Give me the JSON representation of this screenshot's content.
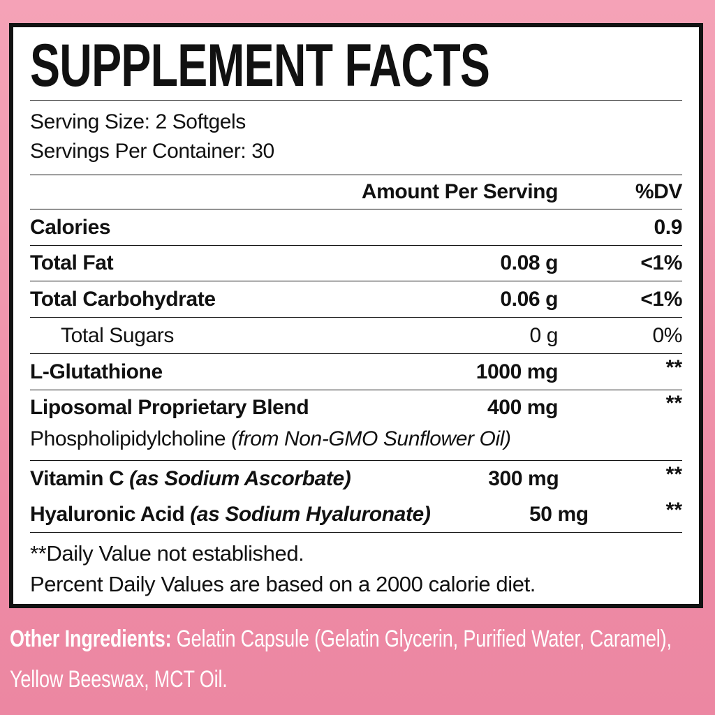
{
  "colors": {
    "background_pink_top": "#f5a2b7",
    "background_pink_bottom": "#ec87a2",
    "panel_background": "#ffffff",
    "ink": "#121212",
    "footer_text": "#ffffff"
  },
  "panel": {
    "title": "SUPPLEMENT FACTS",
    "serving_size": "Serving Size: 2 Softgels",
    "servings_per_container": "Servings Per Container: 30",
    "columns": {
      "amount": "Amount Per Serving",
      "dv": "%DV"
    },
    "rows": [
      {
        "label": "Calories",
        "amount": "",
        "dv": "0.9"
      },
      {
        "label": "Total Fat",
        "amount": "0.08 g",
        "dv": "<1%"
      },
      {
        "label": "Total Carbohydrate",
        "amount": "0.06 g",
        "dv": "<1%"
      },
      {
        "label": "Total Sugars",
        "amount": "0 g",
        "dv": "0%"
      },
      {
        "label": "L-Glutathione",
        "amount": "1000 mg",
        "dv": "**"
      },
      {
        "label": "Liposomal Proprietary Blend",
        "amount": "400 mg",
        "dv": "**",
        "sub_plain": "Phospholipidylcholine ",
        "sub_italic": "(from Non-GMO Sunflower Oil)"
      },
      {
        "label": "Vitamin C ",
        "label_italic": "(as Sodium Ascorbate)",
        "amount": "300 mg",
        "dv": "**"
      },
      {
        "label": "Hyaluronic Acid ",
        "label_italic": "(as Sodium Hyaluronate)",
        "amount": "50 mg",
        "dv": "**"
      }
    ],
    "footnotes": [
      "**Daily Value not established.",
      "Percent Daily Values are based on a 2000 calorie diet."
    ]
  },
  "other_ingredients": {
    "label": "Other Ingredients:",
    "text": " Gelatin Capsule (Gelatin Glycerin, Purified Water, Caramel), Yellow Beeswax, MCT Oil."
  }
}
